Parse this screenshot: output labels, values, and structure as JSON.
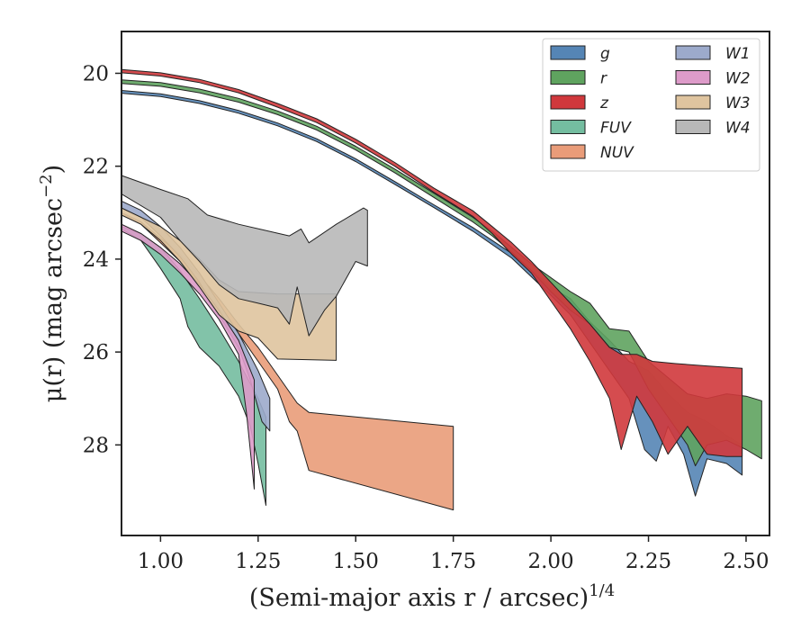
{
  "chart_data": {
    "type": "area",
    "xlabel": "(Semi-major axis r / arcsec)",
    "xlabel_exp": "1/4",
    "ylabel": "μ(r) (mag arcsec",
    "ylabel_exp": "−2",
    "ylabel_close": ")",
    "xlim": [
      0.9,
      2.56
    ],
    "ylim": [
      29.95,
      19.1
    ],
    "y_inverted": true,
    "xticks": [
      1.0,
      1.25,
      1.5,
      1.75,
      2.0,
      2.25,
      2.5
    ],
    "xtick_labels": [
      "1.00",
      "1.25",
      "1.50",
      "1.75",
      "2.00",
      "2.25",
      "2.50"
    ],
    "yticks": [
      20,
      22,
      24,
      26,
      28
    ],
    "ytick_labels": [
      "20",
      "22",
      "24",
      "26",
      "28"
    ],
    "grid": false,
    "legend": {
      "placement": "top-right",
      "columns": 2
    },
    "series": [
      {
        "name": "g",
        "label": "g",
        "color": "#5585b5",
        "upper": [
          [
            0.9,
            20.37
          ],
          [
            1.0,
            20.44
          ],
          [
            1.1,
            20.59
          ],
          [
            1.2,
            20.8
          ],
          [
            1.3,
            21.07
          ],
          [
            1.4,
            21.41
          ],
          [
            1.5,
            21.84
          ],
          [
            1.6,
            22.33
          ],
          [
            1.7,
            22.83
          ],
          [
            1.8,
            23.32
          ],
          [
            1.9,
            23.88
          ],
          [
            2.0,
            24.6
          ],
          [
            2.05,
            24.85
          ],
          [
            2.1,
            25.35
          ],
          [
            2.15,
            25.75
          ],
          [
            2.2,
            26.2
          ],
          [
            2.25,
            26.4
          ],
          [
            2.3,
            26.9
          ],
          [
            2.35,
            27.3
          ],
          [
            2.4,
            27.5
          ],
          [
            2.45,
            27.8
          ],
          [
            2.49,
            28.0
          ]
        ],
        "lower": [
          [
            0.9,
            20.43
          ],
          [
            1.0,
            20.5
          ],
          [
            1.1,
            20.65
          ],
          [
            1.2,
            20.86
          ],
          [
            1.3,
            21.13
          ],
          [
            1.4,
            21.47
          ],
          [
            1.5,
            21.9
          ],
          [
            1.6,
            22.39
          ],
          [
            1.7,
            22.89
          ],
          [
            1.8,
            23.4
          ],
          [
            1.9,
            23.98
          ],
          [
            2.0,
            24.78
          ],
          [
            2.05,
            25.2
          ],
          [
            2.1,
            25.8
          ],
          [
            2.15,
            26.4
          ],
          [
            2.2,
            27.0
          ],
          [
            2.24,
            28.1
          ],
          [
            2.27,
            28.35
          ],
          [
            2.3,
            27.6
          ],
          [
            2.34,
            28.2
          ],
          [
            2.37,
            29.1
          ],
          [
            2.4,
            28.3
          ],
          [
            2.45,
            28.4
          ],
          [
            2.49,
            28.65
          ]
        ]
      },
      {
        "name": "r",
        "label": "r",
        "color": "#5fa35f",
        "upper": [
          [
            0.9,
            20.14
          ],
          [
            1.0,
            20.2
          ],
          [
            1.1,
            20.34
          ],
          [
            1.2,
            20.54
          ],
          [
            1.3,
            20.81
          ],
          [
            1.4,
            21.14
          ],
          [
            1.5,
            21.57
          ],
          [
            1.6,
            22.06
          ],
          [
            1.7,
            22.58
          ],
          [
            1.8,
            23.1
          ],
          [
            1.85,
            23.4
          ],
          [
            1.9,
            23.75
          ],
          [
            1.95,
            24.1
          ],
          [
            2.0,
            24.4
          ],
          [
            2.05,
            24.7
          ],
          [
            2.1,
            24.95
          ],
          [
            2.15,
            25.5
          ],
          [
            2.2,
            25.55
          ],
          [
            2.25,
            26.2
          ],
          [
            2.3,
            26.55
          ],
          [
            2.35,
            26.9
          ],
          [
            2.4,
            27.0
          ],
          [
            2.45,
            26.9
          ],
          [
            2.5,
            26.95
          ],
          [
            2.54,
            27.05
          ]
        ],
        "lower": [
          [
            0.9,
            20.22
          ],
          [
            1.0,
            20.28
          ],
          [
            1.1,
            20.42
          ],
          [
            1.2,
            20.62
          ],
          [
            1.3,
            20.89
          ],
          [
            1.4,
            21.22
          ],
          [
            1.5,
            21.65
          ],
          [
            1.6,
            22.14
          ],
          [
            1.7,
            22.67
          ],
          [
            1.8,
            23.2
          ],
          [
            1.85,
            23.5
          ],
          [
            1.9,
            23.85
          ],
          [
            1.95,
            24.25
          ],
          [
            2.0,
            24.7
          ],
          [
            2.05,
            25.1
          ],
          [
            2.1,
            25.4
          ],
          [
            2.15,
            25.9
          ],
          [
            2.2,
            26.0
          ],
          [
            2.25,
            26.8
          ],
          [
            2.3,
            27.4
          ],
          [
            2.35,
            28.0
          ],
          [
            2.37,
            28.45
          ],
          [
            2.4,
            28.0
          ],
          [
            2.45,
            27.9
          ],
          [
            2.5,
            28.1
          ],
          [
            2.54,
            28.3
          ]
        ]
      },
      {
        "name": "z",
        "label": "z",
        "color": "#d0383c",
        "upper": [
          [
            0.9,
            19.92
          ],
          [
            1.0,
            19.99
          ],
          [
            1.1,
            20.13
          ],
          [
            1.2,
            20.35
          ],
          [
            1.3,
            20.65
          ],
          [
            1.4,
            20.98
          ],
          [
            1.5,
            21.42
          ],
          [
            1.6,
            21.92
          ],
          [
            1.7,
            22.47
          ],
          [
            1.8,
            22.96
          ],
          [
            1.85,
            23.3
          ],
          [
            1.9,
            23.65
          ],
          [
            1.95,
            24.05
          ],
          [
            2.0,
            24.5
          ],
          [
            2.05,
            24.95
          ],
          [
            2.1,
            25.4
          ],
          [
            2.15,
            25.9
          ],
          [
            2.18,
            26.05
          ],
          [
            2.22,
            26.05
          ],
          [
            2.26,
            26.2
          ],
          [
            2.32,
            26.25
          ],
          [
            2.4,
            26.3
          ],
          [
            2.49,
            26.35
          ]
        ],
        "lower": [
          [
            0.9,
            19.99
          ],
          [
            1.0,
            20.06
          ],
          [
            1.1,
            20.2
          ],
          [
            1.2,
            20.42
          ],
          [
            1.3,
            20.73
          ],
          [
            1.4,
            21.06
          ],
          [
            1.5,
            21.5
          ],
          [
            1.6,
            22.0
          ],
          [
            1.7,
            22.56
          ],
          [
            1.8,
            23.08
          ],
          [
            1.85,
            23.45
          ],
          [
            1.9,
            23.9
          ],
          [
            1.95,
            24.3
          ],
          [
            2.0,
            24.9
          ],
          [
            2.05,
            25.5
          ],
          [
            2.1,
            26.2
          ],
          [
            2.15,
            27.0
          ],
          [
            2.18,
            28.1
          ],
          [
            2.22,
            26.95
          ],
          [
            2.26,
            27.5
          ],
          [
            2.3,
            28.2
          ],
          [
            2.35,
            27.6
          ],
          [
            2.4,
            28.2
          ],
          [
            2.45,
            28.25
          ],
          [
            2.49,
            28.25
          ]
        ]
      },
      {
        "name": "FUV",
        "label": "FUV",
        "color": "#74bda0",
        "upper": [
          [
            0.9,
            23.3
          ],
          [
            0.95,
            23.45
          ],
          [
            1.0,
            23.75
          ],
          [
            1.05,
            24.25
          ],
          [
            1.1,
            24.85
          ],
          [
            1.15,
            25.5
          ],
          [
            1.2,
            26.2
          ],
          [
            1.25,
            27.0
          ],
          [
            1.27,
            27.4
          ]
        ],
        "lower": [
          [
            0.9,
            23.35
          ],
          [
            0.95,
            23.6
          ],
          [
            1.0,
            24.2
          ],
          [
            1.05,
            24.85
          ],
          [
            1.07,
            25.45
          ],
          [
            1.1,
            25.9
          ],
          [
            1.15,
            26.3
          ],
          [
            1.2,
            26.95
          ],
          [
            1.23,
            27.6
          ],
          [
            1.25,
            28.4
          ],
          [
            1.27,
            29.3
          ]
        ]
      },
      {
        "name": "NUV",
        "label": "NUV",
        "color": "#e99c79",
        "upper": [
          [
            0.9,
            23.0
          ],
          [
            0.95,
            23.2
          ],
          [
            1.0,
            23.55
          ],
          [
            1.05,
            23.9
          ],
          [
            1.1,
            24.35
          ],
          [
            1.15,
            24.85
          ],
          [
            1.2,
            25.4
          ],
          [
            1.25,
            25.9
          ],
          [
            1.3,
            26.5
          ],
          [
            1.35,
            27.1
          ],
          [
            1.38,
            27.3
          ],
          [
            1.75,
            27.6
          ]
        ],
        "lower": [
          [
            0.9,
            23.05
          ],
          [
            0.95,
            23.25
          ],
          [
            1.0,
            23.65
          ],
          [
            1.05,
            24.05
          ],
          [
            1.1,
            24.55
          ],
          [
            1.15,
            25.05
          ],
          [
            1.2,
            25.6
          ],
          [
            1.25,
            26.2
          ],
          [
            1.3,
            26.8
          ],
          [
            1.33,
            27.5
          ],
          [
            1.35,
            27.7
          ],
          [
            1.38,
            28.55
          ],
          [
            1.75,
            29.4
          ]
        ]
      },
      {
        "name": "W1",
        "label": "W1",
        "color": "#9caacb",
        "upper": [
          [
            0.9,
            22.75
          ],
          [
            0.95,
            22.95
          ],
          [
            1.0,
            23.3
          ],
          [
            1.05,
            23.75
          ],
          [
            1.1,
            24.3
          ],
          [
            1.15,
            24.95
          ],
          [
            1.2,
            25.6
          ],
          [
            1.25,
            26.4
          ],
          [
            1.28,
            27.0
          ]
        ],
        "lower": [
          [
            0.9,
            22.9
          ],
          [
            0.95,
            23.1
          ],
          [
            1.0,
            23.5
          ],
          [
            1.05,
            23.95
          ],
          [
            1.1,
            24.5
          ],
          [
            1.15,
            25.2
          ],
          [
            1.2,
            25.9
          ],
          [
            1.23,
            26.6
          ],
          [
            1.26,
            27.5
          ],
          [
            1.28,
            27.7
          ]
        ]
      },
      {
        "name": "W2",
        "label": "W2",
        "color": "#dd9bc9",
        "upper": [
          [
            0.9,
            23.25
          ],
          [
            0.95,
            23.45
          ],
          [
            1.0,
            23.75
          ],
          [
            1.05,
            24.1
          ],
          [
            1.1,
            24.55
          ],
          [
            1.15,
            25.1
          ],
          [
            1.2,
            25.75
          ],
          [
            1.24,
            26.6
          ]
        ],
        "lower": [
          [
            0.9,
            23.4
          ],
          [
            0.95,
            23.6
          ],
          [
            1.0,
            23.9
          ],
          [
            1.05,
            24.3
          ],
          [
            1.1,
            24.75
          ],
          [
            1.15,
            25.3
          ],
          [
            1.2,
            26.05
          ],
          [
            1.22,
            27.3
          ],
          [
            1.24,
            28.95
          ]
        ]
      },
      {
        "name": "W3",
        "label": "W3",
        "color": "#dfc49f",
        "upper": [
          [
            0.9,
            22.9
          ],
          [
            1.0,
            23.3
          ],
          [
            1.05,
            23.6
          ],
          [
            1.1,
            24.0
          ],
          [
            1.15,
            24.45
          ],
          [
            1.2,
            24.7
          ],
          [
            1.3,
            24.75
          ],
          [
            1.45,
            24.75
          ]
        ],
        "lower": [
          [
            0.9,
            23.05
          ],
          [
            0.95,
            23.25
          ],
          [
            1.0,
            23.6
          ],
          [
            1.05,
            24.05
          ],
          [
            1.1,
            24.6
          ],
          [
            1.15,
            25.2
          ],
          [
            1.2,
            25.55
          ],
          [
            1.25,
            25.7
          ],
          [
            1.3,
            26.15
          ],
          [
            1.45,
            26.18
          ]
        ]
      },
      {
        "name": "W4",
        "label": "W4",
        "color": "#b8b8b8",
        "upper": [
          [
            0.9,
            22.2
          ],
          [
            1.0,
            22.5
          ],
          [
            1.07,
            22.7
          ],
          [
            1.12,
            23.05
          ],
          [
            1.2,
            23.25
          ],
          [
            1.33,
            23.5
          ],
          [
            1.36,
            23.35
          ],
          [
            1.38,
            23.65
          ],
          [
            1.45,
            23.25
          ],
          [
            1.52,
            22.9
          ],
          [
            1.53,
            22.95
          ]
        ],
        "lower": [
          [
            0.9,
            22.6
          ],
          [
            1.0,
            23.1
          ],
          [
            1.05,
            23.6
          ],
          [
            1.1,
            24.05
          ],
          [
            1.15,
            24.55
          ],
          [
            1.2,
            24.85
          ],
          [
            1.25,
            24.95
          ],
          [
            1.3,
            25.05
          ],
          [
            1.33,
            25.4
          ],
          [
            1.35,
            24.6
          ],
          [
            1.38,
            25.65
          ],
          [
            1.42,
            25.1
          ],
          [
            1.45,
            24.8
          ],
          [
            1.5,
            24.05
          ],
          [
            1.53,
            24.15
          ]
        ]
      }
    ]
  }
}
